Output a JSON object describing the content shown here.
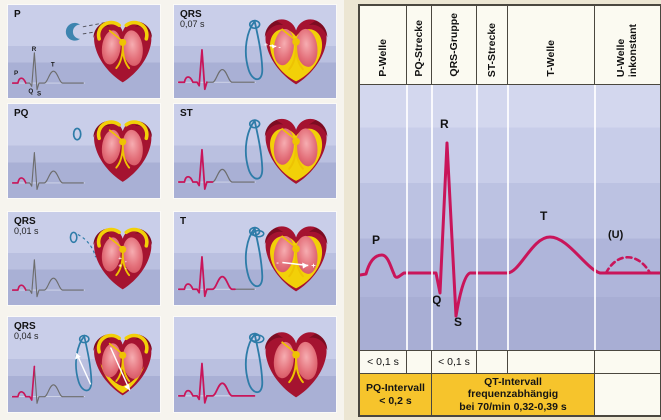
{
  "figure": {
    "title_semantic": "ECG genesis diagram: depolarization phases and standard ECG nomenclature",
    "colors": {
      "trace_red": "#c9155a",
      "trace_gray": "#6d6d6d",
      "loop_blue": "#2e7ca8",
      "heart_outer": "#a51330",
      "heart_cap": "#7d0c22",
      "depolarized_yellow": "#f2d008",
      "conduction_yellow": "#eec303",
      "interval_yellow": "#f6c42c",
      "panel_bg": "#bac0e0",
      "paper_cream": "#ece6d3"
    },
    "left_panels": [
      {
        "label": "P",
        "sublabel": "",
        "phase": "P",
        "loop": "crescent",
        "heart": "atria-start",
        "ecg_letters": {
          "r": "R",
          "p": "P",
          "t": "T",
          "q": "Q",
          "s": "S"
        }
      },
      {
        "label": "QRS",
        "sublabel": "0,07 s",
        "phase": "QRS3",
        "loop": "loop",
        "heart": "ventricles-full-marks"
      },
      {
        "label": "PQ",
        "sublabel": "",
        "phase": "P",
        "loop": "oval",
        "heart": "atria-full"
      },
      {
        "label": "ST",
        "sublabel": "",
        "phase": "ST",
        "loop": "loop",
        "heart": "ventricles-full"
      },
      {
        "label": "QRS",
        "sublabel": "0,01 s",
        "phase": "P",
        "loop": "arc",
        "heart": "septum"
      },
      {
        "label": "T",
        "sublabel": "",
        "phase": "T",
        "loop": "loop-t",
        "heart": "ventricles-repol"
      },
      {
        "label": "QRS",
        "sublabel": "0,04 s",
        "phase": "QRS1",
        "loop": "loop-arrow",
        "heart": "ventricles-partial"
      },
      {
        "label": "",
        "sublabel": "",
        "phase": "FULL",
        "loop": "loop-full",
        "heart": "resting"
      }
    ],
    "right_chart": {
      "type": "annotated-ecg",
      "columns": [
        {
          "header": "P-Welle",
          "duration": "< 0,1 s"
        },
        {
          "header": "PQ-Strecke",
          "duration": ""
        },
        {
          "header": "QRS-Gruppe",
          "duration": "< 0,1 s"
        },
        {
          "header": "ST-Strecke",
          "duration": ""
        },
        {
          "header": "T-Welle",
          "duration": ""
        },
        {
          "header": "U-Welle\ninkonstant",
          "duration": ""
        }
      ],
      "wave_labels": {
        "p": "P",
        "q": "Q",
        "r": "R",
        "s": "S",
        "t": "T",
        "u": "(U)"
      },
      "intervals": [
        {
          "lines": [
            "PQ-Intervall",
            "< 0,2 s"
          ]
        },
        {
          "lines": [
            "QT-Intervall",
            "frequenzabhängig",
            "bei 70/min  0,32-0,39 s"
          ]
        }
      ]
    }
  }
}
